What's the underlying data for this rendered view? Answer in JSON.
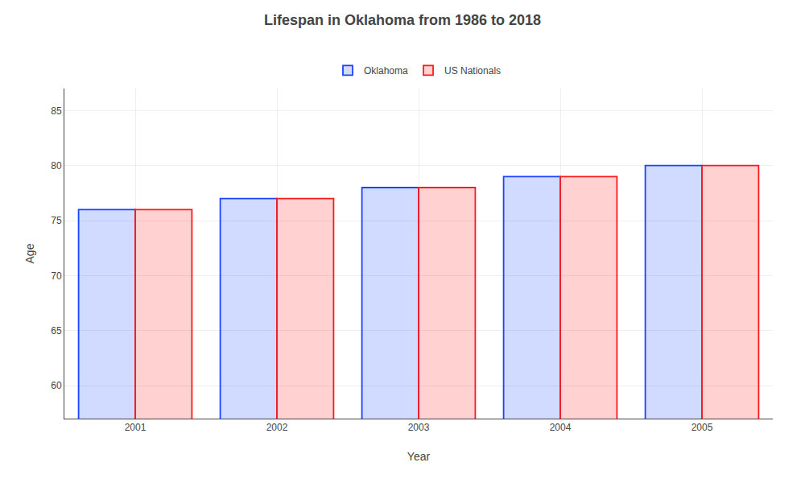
{
  "chart_data": {
    "type": "bar",
    "title": "Lifespan in Oklahoma from 1986 to 2018",
    "x_label": "Year",
    "y_label": "Age",
    "categories": [
      "2001",
      "2002",
      "2003",
      "2004",
      "2005"
    ],
    "series": [
      {
        "name": "Oklahoma",
        "color": "#1a44ff",
        "values": [
          76.0,
          77.0,
          78.0,
          79.0,
          80.0
        ]
      },
      {
        "name": "US Nationals",
        "color": "#ff1a1a",
        "values": [
          76.0,
          77.0,
          78.0,
          79.0,
          80.0
        ]
      }
    ],
    "ylim": [
      57,
      87
    ],
    "yticks": [
      60,
      65,
      70,
      75,
      80,
      85
    ],
    "grid": true,
    "legend": "top"
  }
}
